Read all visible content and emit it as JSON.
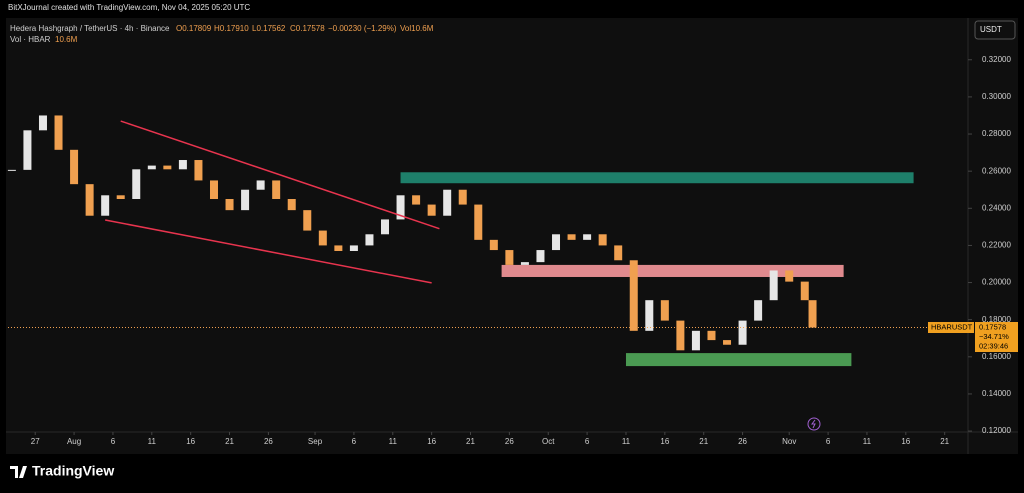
{
  "header": {
    "credit": "BitXJournal created with TradingView.com, Nov 04, 2025 05:20 UTC",
    "symbol": "Hedera Hashgraph / TetherUS · 4h · Binance",
    "open": "O0.17809",
    "high": "H0.17910",
    "low": "L0.17562",
    "close": "C0.17578",
    "change": "−0.00230 (−1.29%)",
    "volume": "Vol10.6M",
    "volume_indicator": "Vol · HBAR",
    "volume_value": "10.6M"
  },
  "currency": "USDT",
  "price_tag": {
    "symbol": "HBARUSDT",
    "price": "0.17578",
    "change": "−34.71%",
    "countdown": "02:39:46"
  },
  "footer": {
    "logo": "TradingView"
  },
  "chart_data": {
    "type": "candlestick",
    "x": [
      "2025-07-24",
      "2025-07-26",
      "2025-07-28",
      "2025-07-30",
      "2025-08-01",
      "2025-08-03",
      "2025-08-05",
      "2025-08-07",
      "2025-08-09",
      "2025-08-11",
      "2025-08-13",
      "2025-08-15",
      "2025-08-17",
      "2025-08-19",
      "2025-08-21",
      "2025-08-23",
      "2025-08-25",
      "2025-08-27",
      "2025-08-29",
      "2025-08-31",
      "2025-09-02",
      "2025-09-04",
      "2025-09-06",
      "2025-09-08",
      "2025-09-10",
      "2025-09-12",
      "2025-09-14",
      "2025-09-16",
      "2025-09-18",
      "2025-09-20",
      "2025-09-22",
      "2025-09-24",
      "2025-09-26",
      "2025-09-28",
      "2025-09-30",
      "2025-10-02",
      "2025-10-04",
      "2025-10-06",
      "2025-10-08",
      "2025-10-10",
      "2025-10-12",
      "2025-10-14",
      "2025-10-16",
      "2025-10-18",
      "2025-10-20",
      "2025-10-22",
      "2025-10-24",
      "2025-10-26",
      "2025-10-28",
      "2025-10-30",
      "2025-11-01",
      "2025-11-03",
      "2025-11-04"
    ],
    "close": [
      0.2607,
      0.282,
      0.29,
      0.2715,
      0.253,
      0.236,
      0.247,
      0.245,
      0.261,
      0.263,
      0.261,
      0.266,
      0.255,
      0.245,
      0.239,
      0.25,
      0.255,
      0.245,
      0.239,
      0.228,
      0.22,
      0.217,
      0.22,
      0.226,
      0.234,
      0.247,
      0.242,
      0.236,
      0.25,
      0.242,
      0.223,
      0.2175,
      0.2095,
      0.211,
      0.2175,
      0.226,
      0.223,
      0.226,
      0.22,
      0.212,
      0.174,
      0.1905,
      0.1795,
      0.1635,
      0.174,
      0.169,
      0.1665,
      0.1795,
      0.1905,
      0.2065,
      0.2005,
      0.1905,
      0.17578
    ],
    "up_color": "#e6e6e6",
    "down_color": "#f0a050",
    "last_price": 0.17578,
    "xlim": [
      "2025-07-23T12:00:00",
      "2025-11-24T00:00:00"
    ],
    "xticks": [
      {
        "value": "2025-07-27",
        "label": "27"
      },
      {
        "value": "2025-08-01",
        "label": "Aug"
      },
      {
        "value": "2025-08-06",
        "label": "6"
      },
      {
        "value": "2025-08-11",
        "label": "11"
      },
      {
        "value": "2025-08-16",
        "label": "16"
      },
      {
        "value": "2025-08-21",
        "label": "21"
      },
      {
        "value": "2025-08-26",
        "label": "26"
      },
      {
        "value": "2025-09-01",
        "label": "Sep"
      },
      {
        "value": "2025-09-06",
        "label": "6"
      },
      {
        "value": "2025-09-11",
        "label": "11"
      },
      {
        "value": "2025-09-16",
        "label": "16"
      },
      {
        "value": "2025-09-21",
        "label": "21"
      },
      {
        "value": "2025-09-26",
        "label": "26"
      },
      {
        "value": "2025-10-01",
        "label": "Oct"
      },
      {
        "value": "2025-10-06",
        "label": "6"
      },
      {
        "value": "2025-10-11",
        "label": "11"
      },
      {
        "value": "2025-10-16",
        "label": "16"
      },
      {
        "value": "2025-10-21",
        "label": "21"
      },
      {
        "value": "2025-10-26",
        "label": "26"
      },
      {
        "value": "2025-11-01",
        "label": "Nov"
      },
      {
        "value": "2025-11-06",
        "label": "6"
      },
      {
        "value": "2025-11-11",
        "label": "11"
      },
      {
        "value": "2025-11-16",
        "label": "16"
      },
      {
        "value": "2025-11-21",
        "label": "21"
      }
    ],
    "ylim": [
      0.1195,
      0.3425
    ],
    "yticks": [
      {
        "value": 0.12,
        "label": "0.12000"
      },
      {
        "value": 0.14,
        "label": "0.14000"
      },
      {
        "value": 0.16,
        "label": "0.16000"
      },
      {
        "value": 0.18,
        "label": "0.18000"
      },
      {
        "value": 0.2,
        "label": "0.20000"
      },
      {
        "value": 0.22,
        "label": "0.22000"
      },
      {
        "value": 0.24,
        "label": "0.24000"
      },
      {
        "value": 0.26,
        "label": "0.26000"
      },
      {
        "value": 0.28,
        "label": "0.28000"
      },
      {
        "value": 0.3,
        "label": "0.30000"
      },
      {
        "value": 0.32,
        "label": "0.32000"
      }
    ],
    "trendlines": [
      {
        "from": [
          "2025-08-07",
          0.287
        ],
        "to": [
          "2025-09-17",
          0.229
        ],
        "color": "#e8344e"
      },
      {
        "from": [
          "2025-08-05",
          0.2337
        ],
        "to": [
          "2025-09-16",
          0.1998
        ],
        "color": "#e8344e"
      }
    ],
    "zones": [
      {
        "from": "2025-09-12",
        "to": "2025-11-17",
        "top": 0.2594,
        "bottom": 0.2535,
        "color": "#1e7f6a"
      },
      {
        "from": "2025-09-25",
        "to": "2025-11-08",
        "top": 0.2095,
        "bottom": 0.203,
        "color": "#e08a8e"
      },
      {
        "from": "2025-10-11",
        "to": "2025-11-09",
        "top": 0.162,
        "bottom": 0.155,
        "color": "#4a9a52"
      }
    ]
  }
}
